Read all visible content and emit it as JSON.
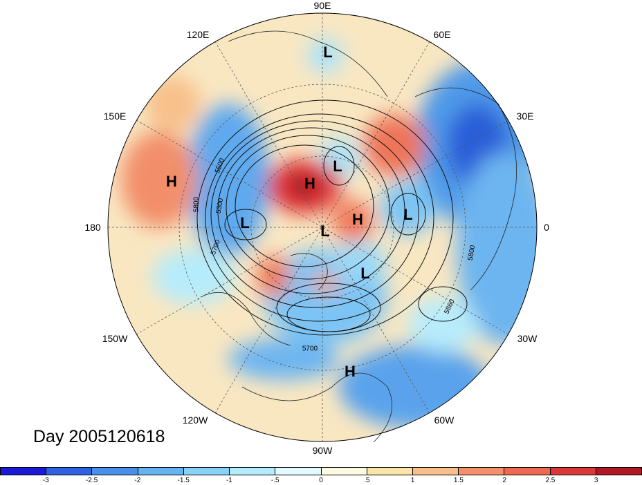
{
  "day_label": "Day 2005120618",
  "longitude_labels": [
    "90E",
    "60E",
    "30E",
    "0",
    "30W",
    "60W",
    "90W",
    "120W",
    "150W",
    "180",
    "150E",
    "120E"
  ],
  "systems": [
    {
      "name": "system-L-siberia",
      "type": "L"
    },
    {
      "name": "system-L-arctic",
      "type": "L"
    },
    {
      "name": "system-H-arctic",
      "type": "H"
    },
    {
      "name": "system-H-pacific",
      "type": "H"
    },
    {
      "name": "system-L-bering",
      "type": "L"
    },
    {
      "name": "system-L-canada",
      "type": "L"
    },
    {
      "name": "system-H-greenland",
      "type": "H"
    },
    {
      "name": "system-L-scandinavia",
      "type": "L"
    },
    {
      "name": "system-L-atlantic",
      "type": "L"
    },
    {
      "name": "system-H-caribbean",
      "type": "H"
    }
  ],
  "contour_labels": [
    "5500",
    "5300",
    "5800",
    "5700",
    "5800",
    "5860",
    "5700"
  ],
  "colorbar": {
    "colors": [
      "#1a1ad6",
      "#2f62e0",
      "#4a90ea",
      "#66b3f2",
      "#88d2f8",
      "#b3ecfb",
      "#e4fbfd",
      "#fdfbe2",
      "#fbe4a8",
      "#f8bf8a",
      "#f2916a",
      "#ec6a52",
      "#db3838",
      "#b01824"
    ],
    "labels": [
      "-3",
      "-2.5",
      "-2",
      "-1.5",
      "-1",
      "-.5",
      "0",
      ".5",
      "1",
      "1.5",
      "2",
      "2.5",
      "3"
    ]
  }
}
